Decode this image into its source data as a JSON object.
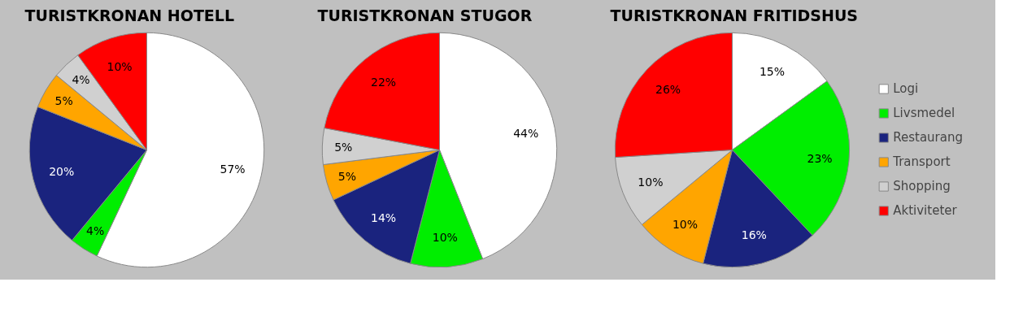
{
  "chart_data": [
    {
      "type": "pie",
      "title": "TURISTKRONAN HOTELL",
      "categories": [
        null,
        null,
        null,
        null,
        null,
        null
      ],
      "values": [
        57,
        4,
        20,
        5,
        4,
        10
      ],
      "value_labels": [
        "57%",
        "4%",
        "20%",
        "5%",
        "4%",
        "10%"
      ],
      "colors": [
        "#ffffff",
        "#00ee00",
        "#1a237e",
        "#ffa500",
        "#d0d0d0",
        "#ff0000"
      ]
    },
    {
      "type": "pie",
      "title": "TURISTKRONAN STUGOR",
      "categories": [
        null,
        null,
        null,
        null,
        null,
        null
      ],
      "values": [
        44,
        10,
        14,
        5,
        5,
        22
      ],
      "value_labels": [
        "44%",
        "10%",
        "14%",
        "5%",
        "5%",
        "22%"
      ],
      "colors": [
        "#ffffff",
        "#00ee00",
        "#1a237e",
        "#ffa500",
        "#d0d0d0",
        "#ff0000"
      ]
    },
    {
      "type": "pie",
      "title": "TURISTKRONAN FRITIDSHUS",
      "categories": [
        "Logi",
        "Livsmedel",
        "Restaurang",
        "Transport",
        "Shopping",
        "Aktiviteter"
      ],
      "values": [
        15,
        23,
        16,
        10,
        10,
        26
      ],
      "value_labels": [
        "15%",
        "23%",
        "16%",
        "10%",
        "10%",
        "26%"
      ],
      "colors": [
        "#ffffff",
        "#00ee00",
        "#1a237e",
        "#ffa500",
        "#d0d0d0",
        "#ff0000"
      ],
      "legend": "right"
    }
  ]
}
